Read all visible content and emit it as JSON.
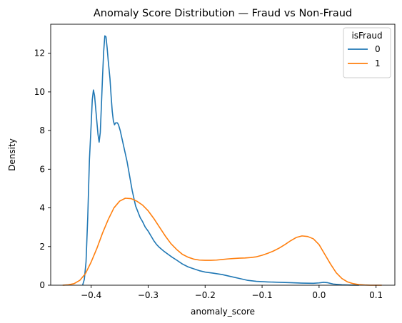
{
  "chart_data": {
    "type": "line",
    "title": "Anomaly Score Distribution — Fraud vs Non-Fraud",
    "xlabel": "anomaly_score",
    "ylabel": "Density",
    "xlim": [
      -0.471,
      0.133
    ],
    "ylim": [
      0,
      13.5
    ],
    "x_ticks": [
      -0.4,
      -0.3,
      -0.2,
      -0.1,
      0.0,
      0.1
    ],
    "x_tick_labels": [
      "−0.4",
      "−0.3",
      "−0.2",
      "−0.1",
      "0.0",
      "0.1"
    ],
    "y_ticks": [
      0,
      2,
      4,
      6,
      8,
      10,
      12
    ],
    "y_tick_labels": [
      "0",
      "2",
      "4",
      "6",
      "8",
      "10",
      "12"
    ],
    "grid": false,
    "legend": {
      "title": "isFraud",
      "placement": "top-right"
    },
    "series": [
      {
        "name": "0",
        "color": "#1f77b4",
        "points": [
          [
            -0.415,
            0.0
          ],
          [
            -0.412,
            0.3
          ],
          [
            -0.409,
            1.2
          ],
          [
            -0.406,
            3.5
          ],
          [
            -0.403,
            6.5
          ],
          [
            -0.4,
            8.3
          ],
          [
            -0.398,
            9.6
          ],
          [
            -0.396,
            10.1
          ],
          [
            -0.394,
            9.8
          ],
          [
            -0.391,
            8.8
          ],
          [
            -0.388,
            7.8
          ],
          [
            -0.386,
            7.4
          ],
          [
            -0.384,
            7.9
          ],
          [
            -0.382,
            9.3
          ],
          [
            -0.38,
            10.8
          ],
          [
            -0.378,
            12.1
          ],
          [
            -0.376,
            12.9
          ],
          [
            -0.374,
            12.85
          ],
          [
            -0.372,
            12.3
          ],
          [
            -0.37,
            11.6
          ],
          [
            -0.367,
            10.7
          ],
          [
            -0.365,
            9.8
          ],
          [
            -0.363,
            9.0
          ],
          [
            -0.361,
            8.5
          ],
          [
            -0.359,
            8.3
          ],
          [
            -0.357,
            8.4
          ],
          [
            -0.354,
            8.4
          ],
          [
            -0.352,
            8.3
          ],
          [
            -0.349,
            8.0
          ],
          [
            -0.346,
            7.6
          ],
          [
            -0.343,
            7.2
          ],
          [
            -0.34,
            6.8
          ],
          [
            -0.337,
            6.4
          ],
          [
            -0.334,
            5.9
          ],
          [
            -0.331,
            5.4
          ],
          [
            -0.328,
            4.9
          ],
          [
            -0.325,
            4.5
          ],
          [
            -0.322,
            4.1
          ],
          [
            -0.318,
            3.8
          ],
          [
            -0.314,
            3.5
          ],
          [
            -0.31,
            3.3
          ],
          [
            -0.305,
            3.0
          ],
          [
            -0.3,
            2.8
          ],
          [
            -0.295,
            2.55
          ],
          [
            -0.29,
            2.3
          ],
          [
            -0.285,
            2.1
          ],
          [
            -0.28,
            1.95
          ],
          [
            -0.272,
            1.75
          ],
          [
            -0.265,
            1.6
          ],
          [
            -0.258,
            1.45
          ],
          [
            -0.25,
            1.3
          ],
          [
            -0.24,
            1.1
          ],
          [
            -0.23,
            0.95
          ],
          [
            -0.22,
            0.85
          ],
          [
            -0.21,
            0.75
          ],
          [
            -0.2,
            0.68
          ],
          [
            -0.185,
            0.62
          ],
          [
            -0.17,
            0.55
          ],
          [
            -0.155,
            0.45
          ],
          [
            -0.14,
            0.35
          ],
          [
            -0.125,
            0.25
          ],
          [
            -0.11,
            0.2
          ],
          [
            -0.09,
            0.17
          ],
          [
            -0.07,
            0.15
          ],
          [
            -0.05,
            0.13
          ],
          [
            -0.03,
            0.11
          ],
          [
            -0.01,
            0.1
          ],
          [
            0.0,
            0.12
          ],
          [
            0.008,
            0.15
          ],
          [
            0.015,
            0.13
          ],
          [
            0.025,
            0.06
          ],
          [
            0.04,
            0.02
          ],
          [
            0.055,
            0.005
          ],
          [
            0.07,
            0.0
          ]
        ]
      },
      {
        "name": "1",
        "color": "#ff7f0e",
        "points": [
          [
            -0.45,
            0.0
          ],
          [
            -0.44,
            0.02
          ],
          [
            -0.43,
            0.08
          ],
          [
            -0.42,
            0.25
          ],
          [
            -0.41,
            0.6
          ],
          [
            -0.4,
            1.2
          ],
          [
            -0.39,
            1.9
          ],
          [
            -0.38,
            2.7
          ],
          [
            -0.37,
            3.4
          ],
          [
            -0.36,
            4.0
          ],
          [
            -0.35,
            4.35
          ],
          [
            -0.34,
            4.5
          ],
          [
            -0.33,
            4.48
          ],
          [
            -0.32,
            4.35
          ],
          [
            -0.31,
            4.15
          ],
          [
            -0.3,
            3.85
          ],
          [
            -0.29,
            3.45
          ],
          [
            -0.28,
            3.0
          ],
          [
            -0.27,
            2.55
          ],
          [
            -0.26,
            2.15
          ],
          [
            -0.25,
            1.85
          ],
          [
            -0.24,
            1.6
          ],
          [
            -0.23,
            1.45
          ],
          [
            -0.22,
            1.35
          ],
          [
            -0.21,
            1.3
          ],
          [
            -0.2,
            1.29
          ],
          [
            -0.19,
            1.29
          ],
          [
            -0.18,
            1.3
          ],
          [
            -0.17,
            1.33
          ],
          [
            -0.16,
            1.36
          ],
          [
            -0.15,
            1.38
          ],
          [
            -0.14,
            1.4
          ],
          [
            -0.13,
            1.41
          ],
          [
            -0.12,
            1.43
          ],
          [
            -0.11,
            1.47
          ],
          [
            -0.1,
            1.55
          ],
          [
            -0.09,
            1.65
          ],
          [
            -0.08,
            1.77
          ],
          [
            -0.07,
            1.92
          ],
          [
            -0.06,
            2.1
          ],
          [
            -0.05,
            2.3
          ],
          [
            -0.04,
            2.47
          ],
          [
            -0.03,
            2.55
          ],
          [
            -0.02,
            2.52
          ],
          [
            -0.01,
            2.4
          ],
          [
            0.0,
            2.1
          ],
          [
            0.01,
            1.6
          ],
          [
            0.02,
            1.1
          ],
          [
            0.03,
            0.65
          ],
          [
            0.04,
            0.35
          ],
          [
            0.05,
            0.17
          ],
          [
            0.06,
            0.08
          ],
          [
            0.07,
            0.03
          ],
          [
            0.08,
            0.01
          ],
          [
            0.09,
            0.0
          ],
          [
            0.1,
            0.0
          ],
          [
            0.11,
            0.0
          ]
        ]
      }
    ]
  }
}
